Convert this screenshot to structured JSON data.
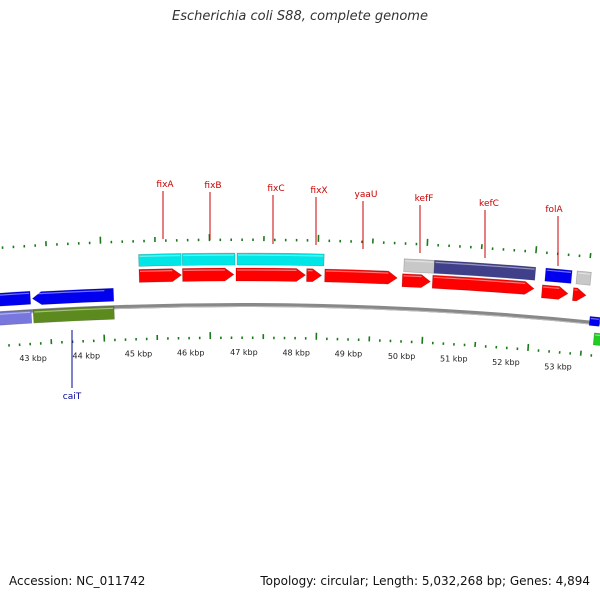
{
  "title": "Escherichia coli S88, complete genome",
  "footer": {
    "accession": "Accession: NC_011742",
    "summary": "Topology: circular; Length: 5,032,268 bp; Genes: 4,894"
  },
  "colors": {
    "forward_cds": "#ff0000",
    "reverse_cds": "#0000ee",
    "forward_feature_alt": "#00e6e6",
    "navy_feature": "#40408a",
    "olive_feature": "#5c8a1e",
    "violet_feature": "#7777dd",
    "grey_feature": "#c8c8c8",
    "green_feature": "#22cc22",
    "tick": "#1a7a1a",
    "backbone": "#888888",
    "label_top": "#cc0000",
    "label_bottom": "#000099"
  },
  "scale": {
    "ticks": [
      {
        "label": "43 kbp"
      },
      {
        "label": "44 kbp"
      },
      {
        "label": "45 kbp"
      },
      {
        "label": "46 kbp"
      },
      {
        "label": "47 kbp"
      },
      {
        "label": "48 kbp"
      },
      {
        "label": "49 kbp"
      },
      {
        "label": "50 kbp"
      },
      {
        "label": "51 kbp"
      },
      {
        "label": "52 kbp"
      },
      {
        "label": "53 kbp"
      }
    ]
  },
  "gene_labels_top": [
    {
      "name": "fixA"
    },
    {
      "name": "fixB"
    },
    {
      "name": "fixC"
    },
    {
      "name": "fixX"
    },
    {
      "name": "yaaU"
    },
    {
      "name": "kefF"
    },
    {
      "name": "kefC"
    },
    {
      "name": "folA"
    }
  ],
  "gene_labels_bottom": [
    {
      "name": "caiT"
    }
  ]
}
